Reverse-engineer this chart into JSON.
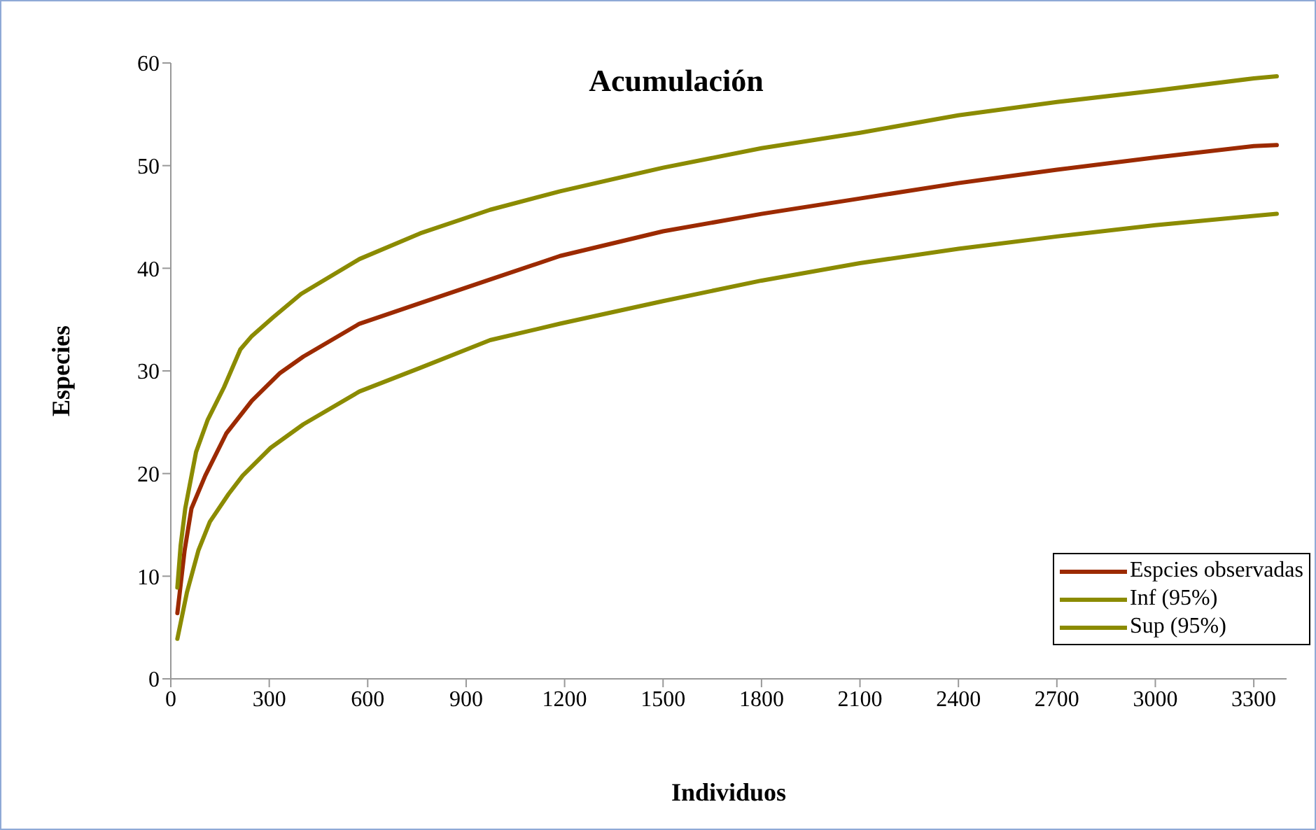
{
  "chart_data": {
    "type": "line",
    "title": "Acumulación",
    "xlabel": "Individuos",
    "ylabel": "Especies",
    "xlim": [
      0,
      3400
    ],
    "xticks": [
      0,
      300,
      600,
      900,
      1200,
      1500,
      1800,
      2100,
      2400,
      2700,
      3000,
      3300
    ],
    "ylim": [
      0,
      60
    ],
    "yticks": [
      0,
      10,
      20,
      30,
      40,
      50,
      60
    ],
    "grid": false,
    "legend": "bottom right",
    "marker": "none",
    "line_style": "solid",
    "series": [
      {
        "name": "Espcies observadas",
        "color": "#9c2a00",
        "x": [
          20,
          42,
          63,
          105,
          169,
          247,
          333,
          404,
          575,
          760,
          973,
          1186,
          1500,
          1800,
          2100,
          2400,
          2700,
          3000,
          3300,
          3370
        ],
        "values": [
          6.4,
          12.5,
          16.6,
          19.8,
          23.9,
          27.1,
          29.8,
          31.4,
          34.6,
          36.6,
          38.9,
          41.2,
          43.6,
          45.3,
          46.8,
          48.3,
          49.6,
          50.8,
          51.9,
          52
        ]
      },
      {
        "name": "Inf (95%)",
        "color": "#8b8b00",
        "x": [
          20,
          49,
          84,
          119,
          176,
          219,
          304,
          404,
          575,
          760,
          973,
          1186,
          1500,
          1800,
          2100,
          2400,
          2700,
          3000,
          3300,
          3370
        ],
        "values": [
          3.9,
          8.4,
          12.5,
          15.3,
          18,
          19.8,
          22.5,
          24.8,
          28,
          30.3,
          33,
          34.6,
          36.8,
          38.8,
          40.5,
          41.9,
          43.1,
          44.2,
          45.1,
          45.3
        ]
      },
      {
        "name": "Sup (95%)",
        "color": "#8b8b00",
        "x": [
          20,
          30,
          44,
          77,
          112,
          162,
          212,
          247,
          311,
          397,
          575,
          760,
          973,
          1186,
          1500,
          1800,
          2100,
          2400,
          2700,
          3000,
          3300,
          3370
        ],
        "values": [
          8.9,
          13,
          16.6,
          22.1,
          25.2,
          28.4,
          32.1,
          33.4,
          35.2,
          37.5,
          40.9,
          43.4,
          45.7,
          47.5,
          49.8,
          51.7,
          53.2,
          54.9,
          56.2,
          57.3,
          58.5,
          58.7
        ]
      }
    ]
  }
}
